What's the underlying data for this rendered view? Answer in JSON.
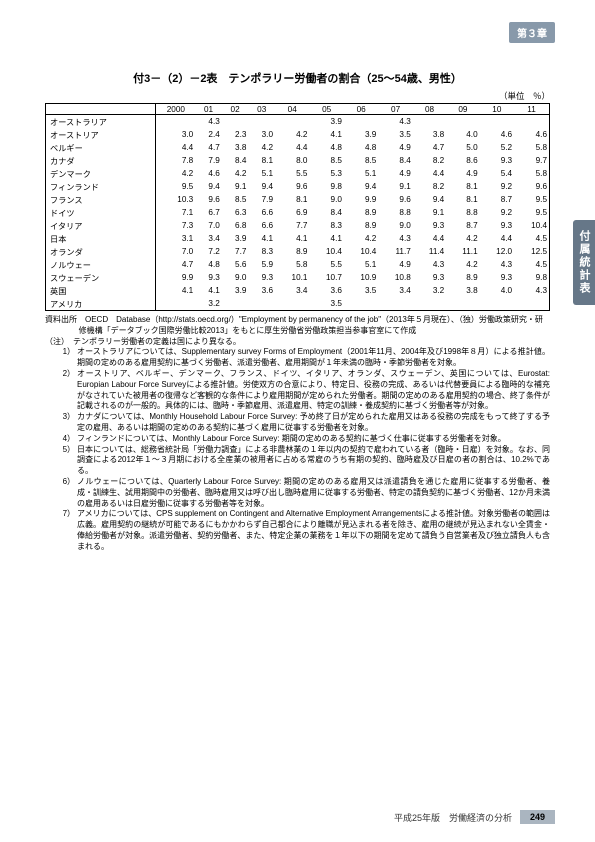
{
  "chapter_badge": "第３章",
  "side_tab": "付属統計表",
  "table": {
    "title": "付3－（2）－2表　テンポラリー労働者の割合（25～54歳、男性）",
    "unit": "（単位　％）",
    "year_cols": [
      "2000",
      "01",
      "02",
      "03",
      "04",
      "05",
      "06",
      "07",
      "08",
      "09",
      "10",
      "11"
    ],
    "rows": [
      {
        "name": "オーストラリア",
        "vals": [
          "",
          "4.3",
          "",
          "",
          "",
          "3.9",
          "",
          "4.3",
          "",
          "",
          "",
          ""
        ]
      },
      {
        "name": "オーストリア",
        "vals": [
          "3.0",
          "2.4",
          "2.3",
          "3.0",
          "4.2",
          "4.1",
          "3.9",
          "3.5",
          "3.8",
          "4.0",
          "4.6",
          "4.6"
        ]
      },
      {
        "name": "ベルギー",
        "vals": [
          "4.4",
          "4.7",
          "3.8",
          "4.2",
          "4.4",
          "4.8",
          "4.8",
          "4.9",
          "4.7",
          "5.0",
          "5.2",
          "5.8"
        ]
      },
      {
        "name": "カナダ",
        "vals": [
          "7.8",
          "7.9",
          "8.4",
          "8.1",
          "8.0",
          "8.5",
          "8.5",
          "8.4",
          "8.2",
          "8.6",
          "9.3",
          "9.7"
        ]
      },
      {
        "name": "デンマーク",
        "vals": [
          "4.2",
          "4.6",
          "4.2",
          "5.1",
          "5.5",
          "5.3",
          "5.1",
          "4.9",
          "4.4",
          "4.9",
          "5.4",
          "5.8"
        ]
      },
      {
        "name": "フィンランド",
        "vals": [
          "9.5",
          "9.4",
          "9.1",
          "9.4",
          "9.6",
          "9.8",
          "9.4",
          "9.1",
          "8.2",
          "8.1",
          "9.2",
          "9.6"
        ]
      },
      {
        "name": "フランス",
        "vals": [
          "10.3",
          "9.6",
          "8.5",
          "7.9",
          "8.1",
          "9.0",
          "9.9",
          "9.6",
          "9.4",
          "8.1",
          "8.7",
          "9.5"
        ]
      },
      {
        "name": "ドイツ",
        "vals": [
          "7.1",
          "6.7",
          "6.3",
          "6.6",
          "6.9",
          "8.4",
          "8.9",
          "8.8",
          "9.1",
          "8.8",
          "9.2",
          "9.5"
        ]
      },
      {
        "name": "イタリア",
        "vals": [
          "7.3",
          "7.0",
          "6.8",
          "6.6",
          "7.7",
          "8.3",
          "8.9",
          "9.0",
          "9.3",
          "8.7",
          "9.3",
          "10.4"
        ]
      },
      {
        "name": "日本",
        "vals": [
          "3.1",
          "3.4",
          "3.9",
          "4.1",
          "4.1",
          "4.1",
          "4.2",
          "4.3",
          "4.4",
          "4.2",
          "4.4",
          "4.5"
        ]
      },
      {
        "name": "オランダ",
        "vals": [
          "7.0",
          "7.2",
          "7.7",
          "8.3",
          "8.9",
          "10.4",
          "10.4",
          "11.7",
          "11.4",
          "11.1",
          "12.0",
          "12.5"
        ]
      },
      {
        "name": "ノルウェー",
        "vals": [
          "4.7",
          "4.8",
          "5.6",
          "5.9",
          "5.8",
          "5.5",
          "5.1",
          "4.9",
          "4.3",
          "4.2",
          "4.3",
          "4.5"
        ]
      },
      {
        "name": "スウェーデン",
        "vals": [
          "9.9",
          "9.3",
          "9.0",
          "9.3",
          "10.1",
          "10.7",
          "10.9",
          "10.8",
          "9.3",
          "8.9",
          "9.3",
          "9.8"
        ]
      },
      {
        "name": "英国",
        "vals": [
          "4.1",
          "4.1",
          "3.9",
          "3.6",
          "3.4",
          "3.6",
          "3.5",
          "3.4",
          "3.2",
          "3.8",
          "4.0",
          "4.3"
        ]
      },
      {
        "name": "アメリカ",
        "vals": [
          "",
          "3.2",
          "",
          "",
          "",
          "3.5",
          "",
          "",
          "",
          "",
          "",
          ""
        ]
      }
    ]
  },
  "source": "資料出所　OECD　Database（http://stats.oecd.org/）\"Employment by permanency of the job\"（2013年５月現在）、（独）労働政策研究・研修機構「データブック国際労働比較2013」をもとに厚生労働省労働政策担当参事官室にて作成",
  "note_lead": "（注）　テンポラリー労働者の定義は国により異なる。",
  "notes": [
    {
      "n": "1）",
      "t": "オーストラリアについては、Supplementary survey Forms of Employment（2001年11月、2004年及び1998年８月）による推計値。期間の定めのある雇用契約に基づく労働者、派遣労働者、雇用期間が１年未満の臨時・季節労働者を対象。"
    },
    {
      "n": "2）",
      "t": "オーストリア、ベルギー、デンマーク、フランス、ドイツ、イタリア、オランダ、スウェーデン、英国については、Eurostat: Europian Labour Force Surveyによる推計値。労使双方の合意により、特定日、役務の完成、あるいは代替要員による臨時的な補充がなされていた被用者の復帰など客観的な条件により雇用期間が定められた労働者。期間の定めのある雇用契約の場合、終了条件が記載されるのが一般的。具体的には、臨時・季節雇用、派遣雇用、特定の訓練・養成契約に基づく労働者等が対象。"
    },
    {
      "n": "3）",
      "t": "カナダについては、Monthly Household Labour Force Survey: 予め終了日が定められた雇用又はある役務の完成をもって終了する予定の雇用、あるいは期間の定めのある契約に基づく雇用に従事する労働者を対象。"
    },
    {
      "n": "4）",
      "t": "フィンランドについては、Monthly Labour Force Survey: 期間の定めのある契約に基づく仕事に従事する労働者を対象。"
    },
    {
      "n": "5）",
      "t": "日本については、総務省統計局「労働力調査」による非農林業の１年以内の契約で雇われている者（臨時・日雇）を対象。なお、同調査による2012年１～３月期における全産業の被用者に占める常雇のうち有期の契約、臨時雇及び日雇の者の割合は、10.2%である。"
    },
    {
      "n": "6）",
      "t": "ノルウェーについては、Quarterly Labour Force Survey: 期間の定めのある雇用又は派遣請負を通じた雇用に従事する労働者、養成・訓練生、試用期間中の労働者、臨時雇用又は呼び出し臨時雇用に従事する労働者、特定の請負契約に基づく労働者、12か月未満の雇用あるいは日雇労働に従事する労働者等を対象。"
    },
    {
      "n": "7）",
      "t": "アメリカについては、CPS supplement on Contingent and Alternative Employment Arrangementsによる推計値。対象労働者の範囲は広義。雇用契約の継続が可能であるにもかかわらず自己都合により離職が見込まれる者を除き、雇用の継続が見込まれない全賃金・俸給労働者が対象。派遣労働者、契約労働者、また、特定企業の業務を１年以下の期間を定めて請負う自営業者及び独立請負人も含まれる。"
    }
  ],
  "footer": {
    "edition": "平成25年版　労働経済の分析",
    "page": "249"
  }
}
